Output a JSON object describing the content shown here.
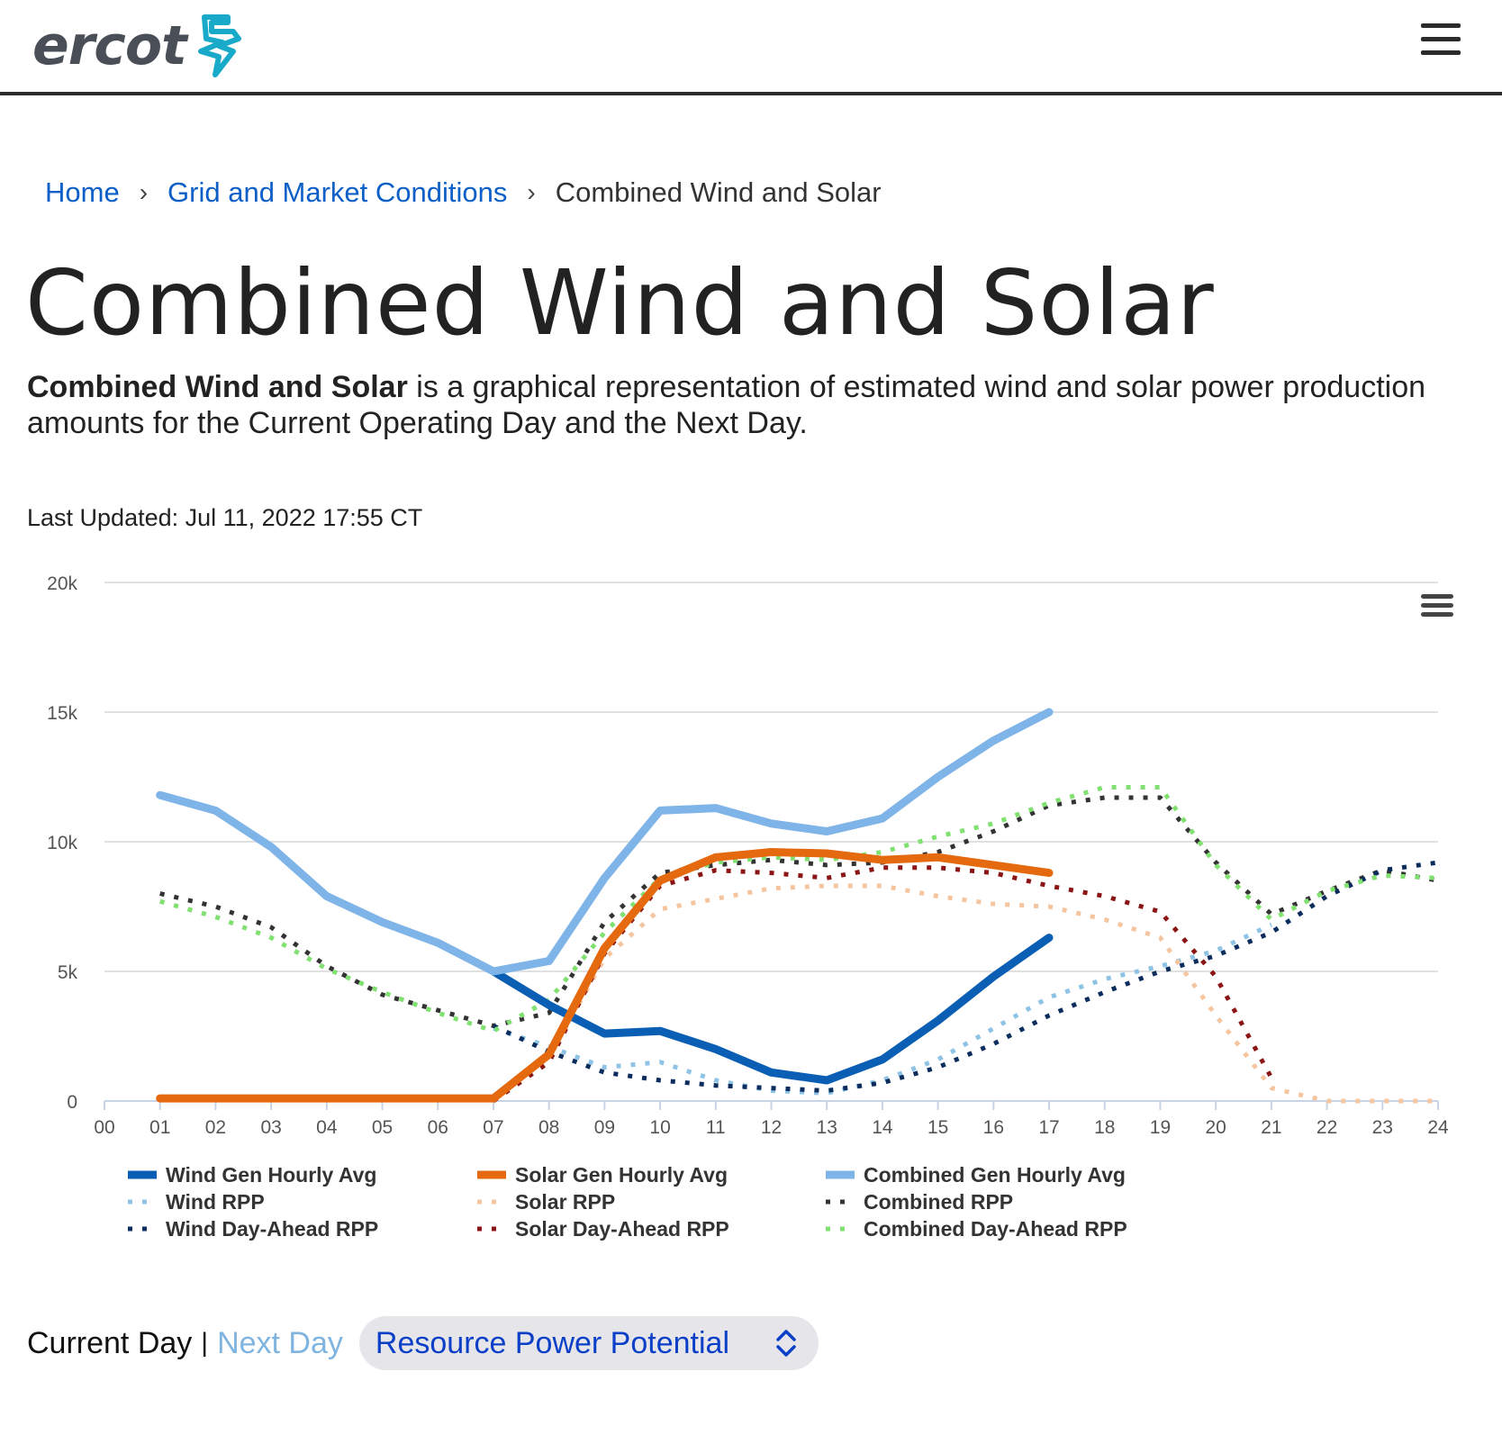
{
  "header": {
    "logo_text": "ercot",
    "menu_icon": "hamburger-menu-icon"
  },
  "breadcrumb": {
    "home": "Home",
    "section": "Grid and Market Conditions",
    "current": "Combined Wind and Solar",
    "separator_icon": "chevron-right-icon"
  },
  "page": {
    "title": "Combined Wind and Solar",
    "description_bold": "Combined Wind and Solar",
    "description_rest": " is a graphical representation of estimated wind and solar power production amounts for the Current Operating Day and the Next Day.",
    "last_updated": "Last Updated: Jul 11, 2022 17:55 CT"
  },
  "controls": {
    "current_day": "Current Day",
    "separator": "|",
    "next_day": "Next Day",
    "select_value": "Resource Power Potential",
    "select_icon": "updown-chevron-icon"
  },
  "chart_data": {
    "type": "line",
    "x": [
      "00",
      "01",
      "02",
      "03",
      "04",
      "05",
      "06",
      "07",
      "08",
      "09",
      "10",
      "11",
      "12",
      "13",
      "14",
      "15",
      "16",
      "17",
      "18",
      "19",
      "20",
      "21",
      "22",
      "23",
      "24"
    ],
    "y_ticks": [
      "0",
      "5k",
      "10k",
      "15k",
      "20k"
    ],
    "ylim": [
      0,
      20000
    ],
    "grid": true,
    "legend_placement": "bottom",
    "menu_icon": "chart-menu-icon",
    "series": [
      {
        "name": "Wind Gen Hourly Avg",
        "style": "solid",
        "color": "#0a5fb4",
        "values": [
          null,
          null,
          null,
          null,
          null,
          null,
          null,
          5000,
          3700,
          2600,
          2700,
          2000,
          1100,
          800,
          1600,
          3100,
          4800,
          6300,
          null,
          null,
          null,
          null,
          null,
          null,
          null
        ]
      },
      {
        "name": "Solar Gen Hourly Avg",
        "style": "solid",
        "color": "#e4690f",
        "values": [
          null,
          100,
          100,
          100,
          100,
          100,
          100,
          100,
          1800,
          5900,
          8500,
          9400,
          9600,
          9550,
          9300,
          9400,
          9100,
          8800,
          null,
          null,
          null,
          null,
          null,
          null,
          null
        ]
      },
      {
        "name": "Combined Gen Hourly Avg",
        "style": "solid",
        "color": "#7fb4e8",
        "values": [
          null,
          11800,
          11200,
          9800,
          7900,
          6900,
          6100,
          5000,
          5400,
          8600,
          11200,
          11300,
          10700,
          10400,
          10900,
          12500,
          13900,
          15000,
          null,
          null,
          null,
          null,
          null,
          null,
          null
        ]
      },
      {
        "name": "Wind RPP",
        "style": "dotted",
        "color": "#8ec3e6",
        "values": [
          null,
          null,
          null,
          null,
          null,
          null,
          null,
          2800,
          2100,
          1300,
          1500,
          800,
          400,
          300,
          800,
          1600,
          2800,
          4000,
          4700,
          5200,
          5800,
          6800,
          null,
          null,
          null
        ]
      },
      {
        "name": "Solar RPP",
        "style": "dotted",
        "color": "#f5c5a0",
        "values": [
          null,
          null,
          null,
          null,
          null,
          null,
          null,
          100,
          1700,
          5500,
          7400,
          7800,
          8200,
          8300,
          8300,
          7900,
          7600,
          7500,
          7000,
          6300,
          3300,
          500,
          0,
          0,
          0
        ]
      },
      {
        "name": "Combined RPP",
        "style": "dotted",
        "color": "#333333",
        "values": [
          null,
          8000,
          7500,
          6700,
          5200,
          4100,
          3500,
          2900,
          3400,
          6900,
          8800,
          9100,
          9300,
          9100,
          9200,
          9600,
          10400,
          11400,
          11700,
          11700,
          9200,
          7200,
          8100,
          8900,
          8500
        ]
      },
      {
        "name": "Wind Day-Ahead RPP",
        "style": "dotted",
        "color": "#0b2d5e",
        "values": [
          null,
          null,
          null,
          null,
          null,
          null,
          null,
          2900,
          1900,
          1100,
          800,
          600,
          500,
          400,
          700,
          1300,
          2200,
          3300,
          4200,
          5000,
          5600,
          6500,
          7900,
          8900,
          9200
        ]
      },
      {
        "name": "Solar Day-Ahead RPP",
        "style": "dotted",
        "color": "#8b1515",
        "values": [
          null,
          null,
          null,
          null,
          null,
          null,
          null,
          0,
          1500,
          5700,
          8300,
          8900,
          8800,
          8600,
          9000,
          9000,
          8800,
          8300,
          7900,
          7300,
          4800,
          900,
          null,
          null,
          null
        ]
      },
      {
        "name": "Combined Day-Ahead RPP",
        "style": "dotted",
        "color": "#80e070",
        "values": [
          null,
          7700,
          7100,
          6300,
          5100,
          4200,
          3400,
          2700,
          3900,
          6500,
          8600,
          9200,
          9400,
          9300,
          9600,
          10200,
          10700,
          11500,
          12100,
          12100,
          9100,
          7000,
          8100,
          8700,
          8600
        ]
      }
    ]
  }
}
